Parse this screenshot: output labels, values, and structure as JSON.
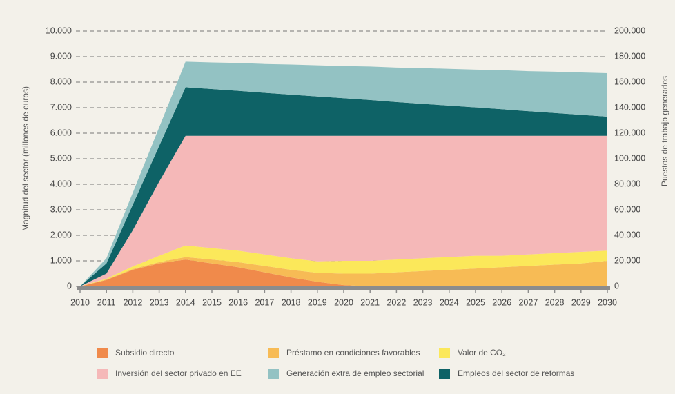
{
  "chart_data": {
    "type": "stacked-area",
    "ylabel": "Magnitud del sector (millones de euros)",
    "y2label": "Puestos de trabajo generados",
    "x": [
      2010,
      2011,
      2012,
      2013,
      2014,
      2015,
      2016,
      2017,
      2018,
      2019,
      2020,
      2021,
      2022,
      2023,
      2024,
      2025,
      2026,
      2027,
      2028,
      2029,
      2030
    ],
    "xlim": [
      2010,
      2030
    ],
    "ylim": [
      0,
      10000
    ],
    "yticks": [
      0,
      {
        "value": 1000,
        "label": "1.000"
      },
      {
        "value": 2000,
        "label": "2.000"
      },
      {
        "value": 3000,
        "label": "3.000"
      },
      {
        "value": 4000,
        "label": "4.000"
      },
      {
        "value": 5000,
        "label": "5.000"
      },
      {
        "value": 6000,
        "label": "6.000"
      },
      {
        "value": 7000,
        "label": "7.000"
      },
      {
        "value": 8000,
        "label": "8.000"
      },
      {
        "value": 9000,
        "label": "9.000"
      },
      {
        "value": 10000,
        "label": "10.000"
      }
    ],
    "y2lim": [
      0,
      200000
    ],
    "y2ticks": [
      0,
      {
        "value": 20000,
        "label": "20.000"
      },
      {
        "value": 40000,
        "label": "40.000"
      },
      {
        "value": 60000,
        "label": "60.000"
      },
      {
        "value": 80000,
        "label": "80.000"
      },
      {
        "value": 100000,
        "label": "100.000"
      },
      {
        "value": 120000,
        "label": "120.000"
      },
      {
        "value": 140000,
        "label": "140.000"
      },
      {
        "value": 160000,
        "label": "160.000"
      },
      {
        "value": 180000,
        "label": "180.000"
      },
      {
        "value": 200000,
        "label": "200.000"
      }
    ],
    "grid": true,
    "series": [
      {
        "name": "Subsidio directo",
        "color": "#f08a4b",
        "values": [
          0,
          250,
          650,
          900,
          1050,
          900,
          750,
          550,
          350,
          180,
          50,
          0,
          0,
          0,
          0,
          0,
          0,
          0,
          0,
          0,
          0
        ]
      },
      {
        "name": "Préstamo en condiciones favorables",
        "color": "#f7bb55",
        "values": [
          0,
          20,
          30,
          50,
          100,
          150,
          200,
          250,
          300,
          350,
          450,
          500,
          550,
          600,
          650,
          700,
          750,
          800,
          850,
          900,
          1000
        ]
      },
      {
        "name": "Valor de CO₂",
        "color": "#fbe85a",
        "values": [
          0,
          30,
          100,
          250,
          450,
          450,
          450,
          450,
          450,
          450,
          500,
          500,
          500,
          500,
          500,
          500,
          450,
          450,
          450,
          450,
          400
        ]
      },
      {
        "name": "Inversión del sector privado en EE",
        "color": "#f5b8b8",
        "values": [
          0,
          200,
          1420,
          2900,
          4300,
          4400,
          4500,
          4650,
          4800,
          4920,
          4900,
          4900,
          4850,
          4800,
          4750,
          4700,
          4700,
          4650,
          4600,
          4550,
          4500
        ]
      },
      {
        "name": "Empleos del sector de reformas",
        "color": "#0e6266",
        "values": [
          0,
          400,
          1000,
          1400,
          1900,
          1830,
          1760,
          1680,
          1610,
          1540,
          1470,
          1400,
          1320,
          1250,
          1180,
          1110,
          1040,
          960,
          890,
          820,
          750
        ]
      },
      {
        "name": "Generación extra de empleo sectorial",
        "color": "#93c2c3",
        "values": [
          0,
          200,
          470,
          730,
          1000,
          1040,
          1090,
          1130,
          1180,
          1220,
          1260,
          1310,
          1350,
          1400,
          1440,
          1480,
          1530,
          1570,
          1620,
          1660,
          1700
        ]
      }
    ]
  }
}
